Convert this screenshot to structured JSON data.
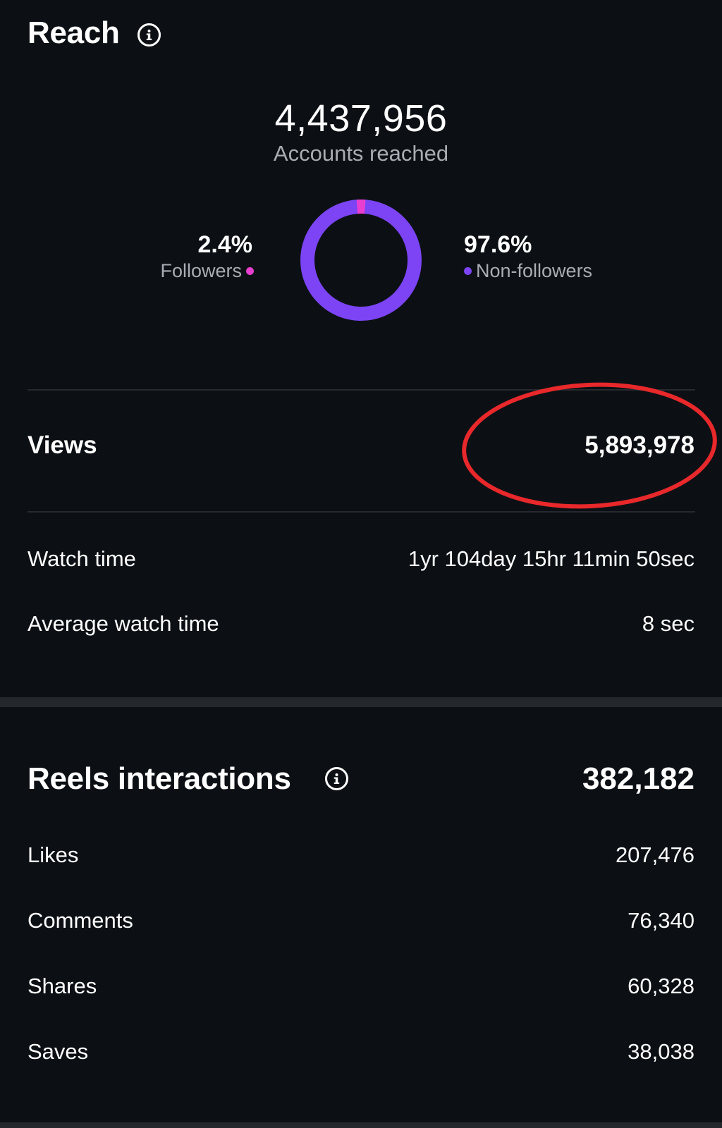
{
  "reach": {
    "title": "Reach",
    "total": "4,437,956",
    "total_label": "Accounts reached",
    "followers": {
      "percent": "2.4%",
      "label": "Followers",
      "share": 2.4,
      "color": "#e83fd0"
    },
    "non_followers": {
      "percent": "97.6%",
      "label": "Non-followers",
      "share": 97.6,
      "color": "#7c44f5"
    }
  },
  "views": {
    "label": "Views",
    "value": "5,893,978"
  },
  "watch_time": {
    "label": "Watch time",
    "value": "1yr 104day 15hr 11min 50sec"
  },
  "avg_watch_time": {
    "label": "Average watch time",
    "value": "8 sec"
  },
  "interactions": {
    "title": "Reels interactions",
    "total": "382,182",
    "rows": [
      {
        "label": "Likes",
        "value": "207,476"
      },
      {
        "label": "Comments",
        "value": "76,340"
      },
      {
        "label": "Shares",
        "value": "60,328"
      },
      {
        "label": "Saves",
        "value": "38,038"
      }
    ]
  },
  "annotation": {
    "color": "#e8282b"
  },
  "colors": {
    "background": "#0c1014",
    "divider": "#262a30",
    "muted_text": "#a8acb3"
  }
}
